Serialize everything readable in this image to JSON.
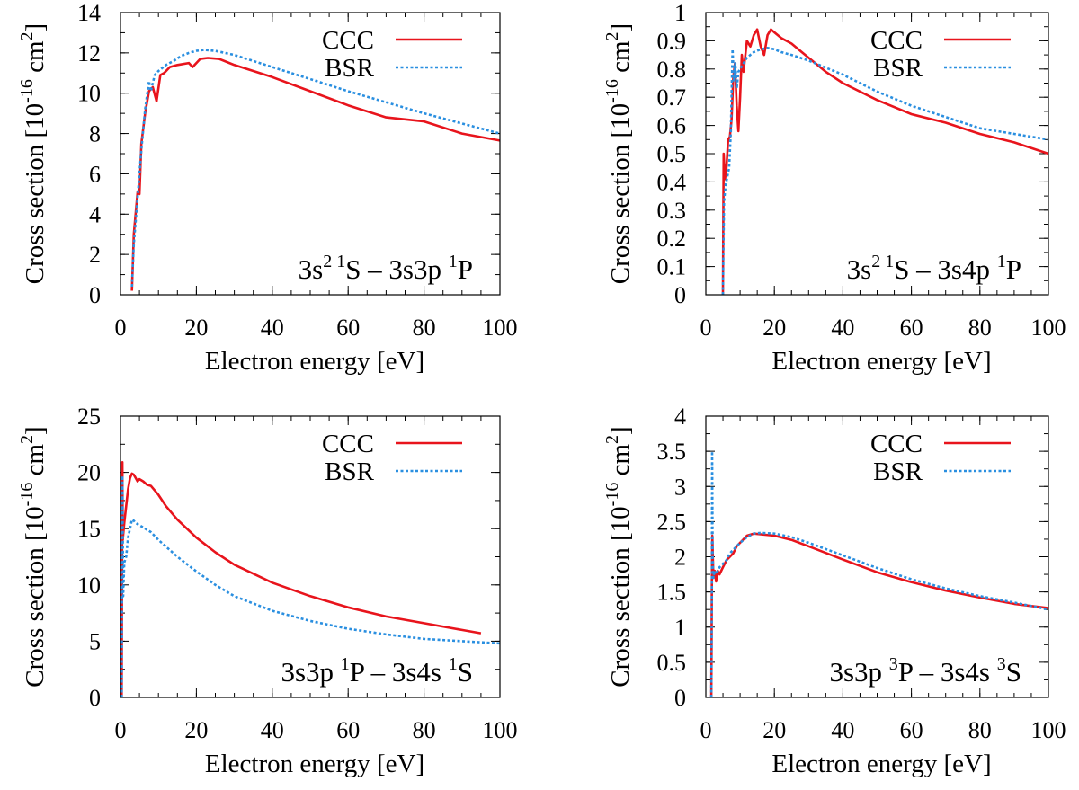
{
  "colors": {
    "ccc": "#e8141c",
    "bsr": "#2a8fe0",
    "axis": "#000000"
  },
  "chart_data": [
    {
      "type": "line",
      "annotation": {
        "main": "3s",
        "sup1": "2",
        "sp1": " ",
        "sup2": "1",
        "mid": "S – 3s3p ",
        "sup3": "1",
        "end": "P"
      },
      "xlabel": "Electron energy [eV]",
      "ylabel": {
        "main": "Cross section [10",
        "exp": "-16",
        "unit": " cm",
        "unitexp": "2",
        "close": "]"
      },
      "xlim": [
        0,
        100
      ],
      "ylim": [
        0,
        14
      ],
      "xticks": [
        0,
        20,
        40,
        60,
        80,
        100
      ],
      "xtick_labels": [
        "0",
        "20",
        "40",
        "60",
        "80",
        "100"
      ],
      "yticks": [
        0,
        2,
        4,
        6,
        8,
        10,
        12,
        14
      ],
      "ytick_labels": [
        "0",
        "2",
        "4",
        "6",
        "8",
        "10",
        "12",
        "14"
      ],
      "legend": {
        "position": "top-right",
        "entries": [
          "CCC",
          "BSR"
        ]
      },
      "series": [
        {
          "name": "CCC",
          "style": "solid",
          "x": [
            3.0,
            3.5,
            4.5,
            5.0,
            5.5,
            6.5,
            7.5,
            8.5,
            9.5,
            10.5,
            11.5,
            13,
            15,
            18,
            19,
            21,
            23,
            26,
            30,
            40,
            50,
            60,
            70,
            80,
            90,
            100
          ],
          "y": [
            0.2,
            3.0,
            5.1,
            5.0,
            7.5,
            9.0,
            10.1,
            10.3,
            9.6,
            10.9,
            11.0,
            11.3,
            11.4,
            11.5,
            11.3,
            11.7,
            11.75,
            11.7,
            11.4,
            10.8,
            10.1,
            9.4,
            8.8,
            8.6,
            8.0,
            7.65
          ]
        },
        {
          "name": "BSR",
          "style": "dotted",
          "x": [
            3.0,
            3.5,
            4.5,
            5.5,
            6.5,
            7.5,
            8.0,
            9.0,
            10,
            12,
            14,
            16,
            18,
            20,
            22,
            25,
            30,
            40,
            50,
            60,
            70,
            80,
            90,
            100
          ],
          "y": [
            0.4,
            2.5,
            4.8,
            7.2,
            9.2,
            10.6,
            10.1,
            10.9,
            11.1,
            11.4,
            11.6,
            11.85,
            12.0,
            12.1,
            12.15,
            12.1,
            11.9,
            11.3,
            10.7,
            10.1,
            9.55,
            9.0,
            8.5,
            8.0
          ]
        }
      ]
    },
    {
      "type": "line",
      "annotation": {
        "main": "3s",
        "sup1": "2",
        "sp1": " ",
        "sup2": "1",
        "mid": "S – 3s4p ",
        "sup3": "1",
        "end": "P"
      },
      "xlabel": "Electron energy [eV]",
      "ylabel": {
        "main": "Cross section [10",
        "exp": "-16",
        "unit": " cm",
        "unitexp": "2",
        "close": "]"
      },
      "xlim": [
        0,
        100
      ],
      "ylim": [
        0,
        1
      ],
      "xticks": [
        0,
        20,
        40,
        60,
        80,
        100
      ],
      "xtick_labels": [
        "0",
        "20",
        "40",
        "60",
        "80",
        "100"
      ],
      "yticks": [
        0,
        0.1,
        0.2,
        0.3,
        0.4,
        0.5,
        0.6,
        0.7,
        0.8,
        0.9,
        1
      ],
      "ytick_labels": [
        "0",
        "0.1",
        "0.2",
        "0.3",
        "0.4",
        "0.5",
        "0.6",
        "0.7",
        "0.8",
        "0.9",
        "1"
      ],
      "legend": {
        "position": "top-right",
        "entries": [
          "CCC",
          "BSR"
        ]
      },
      "series": [
        {
          "name": "CCC",
          "style": "solid",
          "x": [
            5.0,
            5.2,
            5.6,
            6.0,
            6.5,
            7.0,
            7.5,
            8.0,
            8.5,
            9.0,
            9.5,
            10.0,
            10.5,
            11.0,
            12.0,
            13.0,
            14.0,
            15.0,
            16.0,
            17.0,
            18.0,
            19.0,
            20.0,
            22,
            25,
            28,
            30,
            35,
            40,
            50,
            60,
            70,
            80,
            90,
            100
          ],
          "y": [
            0.0,
            0.5,
            0.41,
            0.45,
            0.55,
            0.56,
            0.62,
            0.77,
            0.82,
            0.67,
            0.58,
            0.7,
            0.85,
            0.79,
            0.9,
            0.88,
            0.92,
            0.94,
            0.88,
            0.85,
            0.92,
            0.94,
            0.93,
            0.91,
            0.89,
            0.86,
            0.84,
            0.79,
            0.75,
            0.69,
            0.64,
            0.61,
            0.57,
            0.54,
            0.5
          ]
        },
        {
          "name": "BSR",
          "style": "dotted",
          "x": [
            5.0,
            5.3,
            5.8,
            6.3,
            6.8,
            7.3,
            7.8,
            8.2,
            8.6,
            9.0,
            9.5,
            10.0,
            11,
            12,
            13,
            14,
            16,
            18,
            20,
            22,
            25,
            30,
            40,
            50,
            60,
            70,
            80,
            90,
            100
          ],
          "y": [
            0.0,
            0.33,
            0.39,
            0.42,
            0.45,
            0.58,
            0.87,
            0.76,
            0.82,
            0.73,
            0.79,
            0.8,
            0.82,
            0.84,
            0.85,
            0.86,
            0.87,
            0.875,
            0.87,
            0.86,
            0.85,
            0.83,
            0.78,
            0.72,
            0.67,
            0.63,
            0.59,
            0.57,
            0.55
          ]
        }
      ]
    },
    {
      "type": "line",
      "annotation": {
        "main": "3s3p ",
        "sup1": "1",
        "sp1": "",
        "sup2": "",
        "mid": "P – 3s4s ",
        "sup3": "1",
        "end": "S"
      },
      "xlabel": "Electron energy [eV]",
      "ylabel": {
        "main": "Cross section [10",
        "exp": "-16",
        "unit": " cm",
        "unitexp": "2",
        "close": "]"
      },
      "xlim": [
        0,
        100
      ],
      "ylim": [
        0,
        25
      ],
      "xticks": [
        0,
        20,
        40,
        60,
        80,
        100
      ],
      "xtick_labels": [
        "0",
        "20",
        "40",
        "60",
        "80",
        "100"
      ],
      "yticks": [
        0,
        5,
        10,
        15,
        20,
        25
      ],
      "ytick_labels": [
        "0",
        "5",
        "10",
        "15",
        "20",
        "25"
      ],
      "legend": {
        "position": "top-right",
        "entries": [
          "CCC",
          "BSR"
        ]
      },
      "series": [
        {
          "name": "CCC",
          "style": "solid",
          "x": [
            0.3,
            0.5,
            0.6,
            1.0,
            1.5,
            2.0,
            2.5,
            3.0,
            3.5,
            4.0,
            4.5,
            5.0,
            6.0,
            7.0,
            8.0,
            10,
            12,
            15,
            20,
            25,
            30,
            40,
            50,
            60,
            70,
            80,
            90,
            95
          ],
          "y": [
            0.0,
            20.9,
            14.0,
            15.5,
            17.0,
            18.5,
            19.5,
            19.9,
            19.8,
            19.5,
            19.2,
            19.4,
            19.2,
            18.9,
            18.8,
            18.0,
            17.0,
            15.8,
            14.2,
            12.9,
            11.8,
            10.2,
            9.0,
            8.0,
            7.2,
            6.6,
            6.0,
            5.7
          ]
        },
        {
          "name": "BSR",
          "style": "dotted",
          "x": [
            0.3,
            0.5,
            0.7,
            1.0,
            1.5,
            2.0,
            2.5,
            3.0,
            3.5,
            4.0,
            5.0,
            6.0,
            8.0,
            10,
            12,
            15,
            20,
            25,
            30,
            40,
            50,
            60,
            70,
            80,
            90,
            100
          ],
          "y": [
            0.0,
            19.7,
            9.0,
            12.0,
            12.5,
            14.2,
            15.0,
            15.8,
            15.7,
            15.5,
            15.3,
            15.1,
            14.7,
            14.0,
            13.4,
            12.5,
            11.2,
            10.0,
            9.0,
            7.7,
            6.8,
            6.1,
            5.6,
            5.2,
            5.0,
            4.8
          ]
        }
      ]
    },
    {
      "type": "line",
      "annotation": {
        "main": "3s3p ",
        "sup1": "3",
        "sp1": "",
        "sup2": "",
        "mid": "P – 3s4s ",
        "sup3": "3",
        "end": "S"
      },
      "xlabel": "Electron energy [eV]",
      "ylabel": {
        "main": "Cross section [10",
        "exp": "-16",
        "unit": " cm",
        "unitexp": "2",
        "close": "]"
      },
      "xlim": [
        0,
        100
      ],
      "ylim": [
        0,
        4
      ],
      "xticks": [
        0,
        20,
        40,
        60,
        80,
        100
      ],
      "xtick_labels": [
        "0",
        "20",
        "40",
        "60",
        "80",
        "100"
      ],
      "yticks": [
        0,
        0.5,
        1,
        1.5,
        2,
        2.5,
        3,
        3.5,
        4
      ],
      "ytick_labels": [
        "0",
        "0.5",
        "1",
        "1.5",
        "2",
        "2.5",
        "3",
        "3.5",
        "4"
      ],
      "legend": {
        "position": "top-right",
        "entries": [
          "CCC",
          "BSR"
        ]
      },
      "series": [
        {
          "name": "CCC",
          "style": "solid",
          "x": [
            1.6,
            1.75,
            1.9,
            2.2,
            2.6,
            3.0,
            3.5,
            4.0,
            5.0,
            6.0,
            7.0,
            8.0,
            9.0,
            10,
            12,
            14,
            16,
            20,
            25,
            30,
            40,
            50,
            60,
            70,
            80,
            90,
            100
          ],
          "y": [
            0.0,
            1.6,
            2.3,
            1.7,
            1.8,
            1.65,
            1.8,
            1.75,
            1.85,
            1.95,
            2.0,
            2.05,
            2.15,
            2.2,
            2.3,
            2.33,
            2.32,
            2.3,
            2.24,
            2.15,
            1.96,
            1.78,
            1.64,
            1.52,
            1.42,
            1.33,
            1.27
          ]
        },
        {
          "name": "BSR",
          "style": "dotted",
          "x": [
            1.6,
            1.75,
            1.85,
            2.0,
            2.2,
            2.5,
            3.0,
            3.5,
            4.0,
            5.0,
            6.0,
            7.0,
            8.0,
            9.0,
            10,
            12,
            14,
            16,
            20,
            25,
            30,
            40,
            50,
            60,
            70,
            80,
            90,
            100
          ],
          "y": [
            0.0,
            1.3,
            3.5,
            2.0,
            1.7,
            1.8,
            1.75,
            1.8,
            1.85,
            1.9,
            1.95,
            2.05,
            2.1,
            2.15,
            2.2,
            2.28,
            2.33,
            2.34,
            2.33,
            2.28,
            2.2,
            2.02,
            1.84,
            1.68,
            1.55,
            1.44,
            1.35,
            1.25
          ]
        }
      ]
    }
  ]
}
